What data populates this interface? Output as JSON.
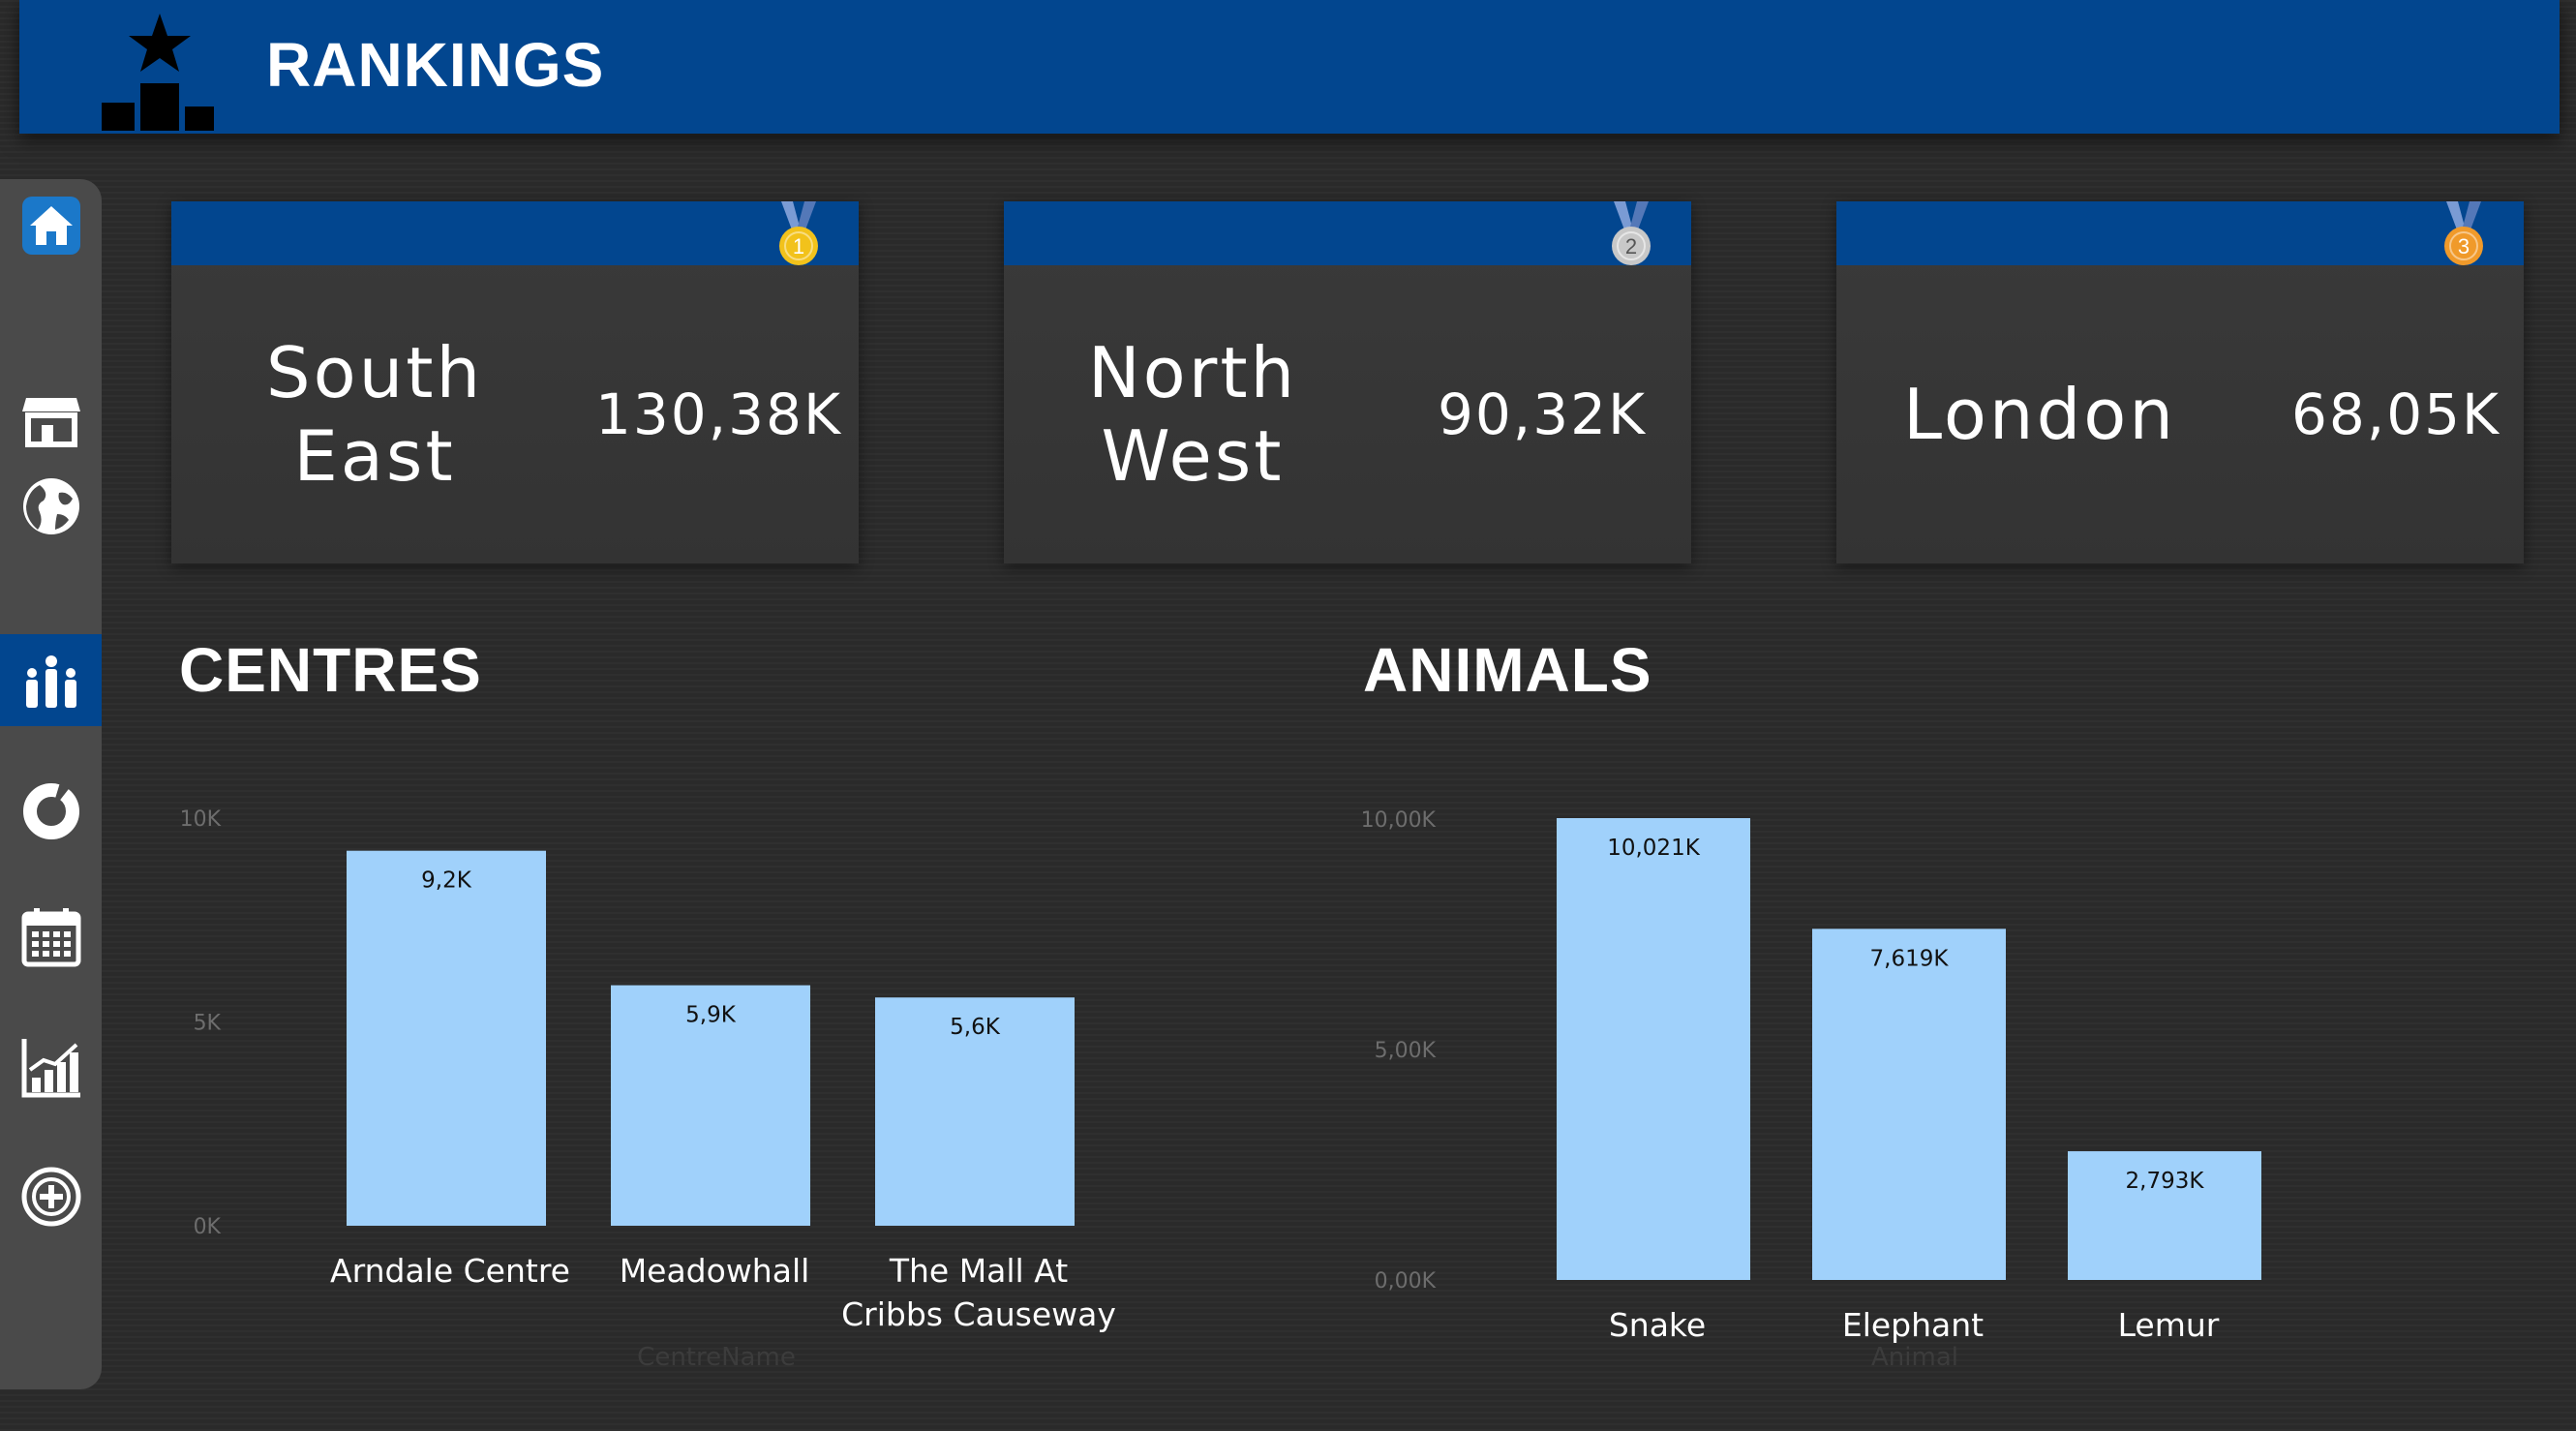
{
  "header": {
    "title": "RANKINGS",
    "icon": "podium-star-icon"
  },
  "sidebar": {
    "items": [
      {
        "icon": "home-icon",
        "active": false
      },
      {
        "icon": "store-icon",
        "active": false
      },
      {
        "icon": "globe-icon",
        "active": false
      },
      {
        "icon": "people-icon",
        "active": true
      },
      {
        "icon": "donut-chart-icon",
        "active": false
      },
      {
        "icon": "calendar-icon",
        "active": false
      },
      {
        "icon": "bar-chart-icon",
        "active": false
      },
      {
        "icon": "add-circle-icon",
        "active": false
      }
    ]
  },
  "kpis": [
    {
      "rank": "1",
      "region": "South\nEast",
      "value": "130,38K",
      "medal_color": "#f2c21b"
    },
    {
      "rank": "2",
      "region": "North\nWest",
      "value": "90,32K",
      "medal_color": "#c8c8c8"
    },
    {
      "rank": "3",
      "region": "London",
      "value": "68,05K",
      "medal_color": "#f09a2a"
    }
  ],
  "sections": {
    "centres_title": "CENTRES",
    "animals_title": "ANIMALS"
  },
  "colors": {
    "accent": "#02468f",
    "bar": "#a0d1fb",
    "background": "#2a2a2a"
  },
  "chart_data": [
    {
      "type": "bar",
      "categories": [
        "Arndale Centre",
        "Meadowhall",
        "The Mall At Cribbs Causeway"
      ],
      "values": [
        9.2,
        5.9,
        5.6
      ],
      "data_labels": [
        "9,2K",
        "5,9K",
        "5,6K"
      ],
      "title": "CENTRES",
      "xlabel": "CentreName",
      "ylabel": "",
      "ylim": [
        0,
        10
      ],
      "y_ticks": [
        "0K",
        "5K",
        "10K"
      ],
      "grid": false
    },
    {
      "type": "bar",
      "categories": [
        "Snake",
        "Elephant",
        "Lemur"
      ],
      "values": [
        10.021,
        7.619,
        2.793
      ],
      "data_labels": [
        "10,021K",
        "7,619K",
        "2,793K"
      ],
      "title": "ANIMALS",
      "xlabel": "Animal",
      "ylabel": "",
      "ylim": [
        0,
        10
      ],
      "y_ticks": [
        "0,00K",
        "5,00K",
        "10,00K"
      ],
      "grid": false
    }
  ]
}
